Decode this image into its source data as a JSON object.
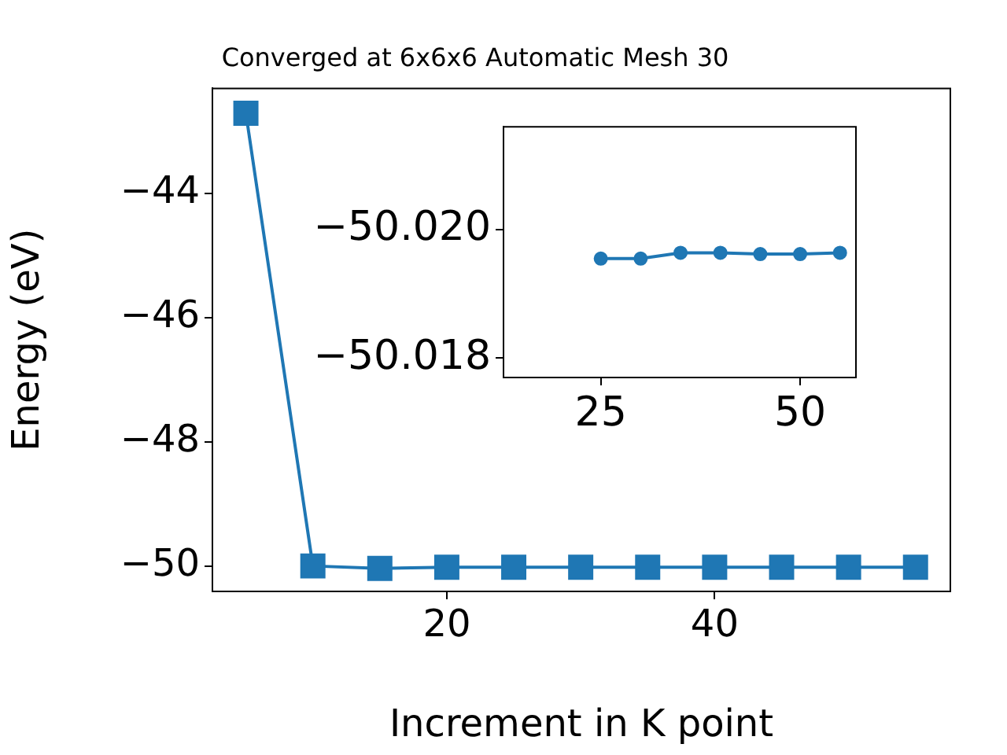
{
  "chart_data": [
    {
      "type": "line",
      "title": "Converged at 6x6x6 Automatic Mesh 30",
      "xlabel": "Increment in K point",
      "ylabel": "Energy (eV)",
      "x": [
        5,
        10,
        15,
        20,
        25,
        30,
        35,
        40,
        45,
        50,
        55
      ],
      "values": [
        -42.71,
        -50.0,
        -50.04,
        -50.02,
        -50.02,
        -50.02,
        -50.02,
        -50.02,
        -50.02,
        -50.02,
        -50.02
      ],
      "color": "#1f77b4",
      "marker": "square",
      "xlim": [
        2.5,
        57.6
      ],
      "ylim": [
        -50.41,
        -42.31
      ],
      "xticks": [
        {
          "value": 20,
          "label": "20"
        },
        {
          "value": 40,
          "label": "40"
        }
      ],
      "yticks": [
        {
          "value": -50,
          "label": "−50"
        },
        {
          "value": -48,
          "label": "−48"
        },
        {
          "value": -46,
          "label": "−46"
        },
        {
          "value": -44,
          "label": "−44"
        }
      ],
      "grid": false
    },
    {
      "type": "line",
      "x": [
        25,
        30,
        35,
        40,
        45,
        50,
        55
      ],
      "values": [
        -50.01955,
        -50.01955,
        -50.01964,
        -50.01964,
        -50.01962,
        -50.01962,
        -50.01964
      ],
      "color": "#1f77b4",
      "marker": "circle",
      "xlim": [
        12.8,
        57.0
      ],
      "ylim": [
        -50.0177,
        -50.0216
      ],
      "xticks": [
        {
          "value": 25,
          "label": "25"
        },
        {
          "value": 50,
          "label": "50"
        }
      ],
      "yticks": [
        {
          "value": -50.02,
          "label": "−50.020"
        },
        {
          "value": -50.018,
          "label": "−50.018"
        }
      ],
      "grid": false
    }
  ]
}
